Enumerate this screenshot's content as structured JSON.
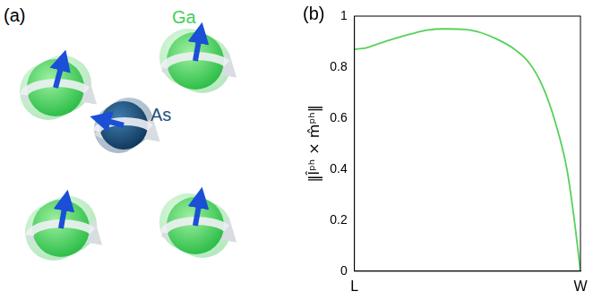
{
  "figure": {
    "panel_a": {
      "label": "(a)",
      "atom_labels": [
        "Ga",
        "As"
      ]
    },
    "panel_b": {
      "label": "(b)"
    }
  },
  "chart_data": {
    "type": "line",
    "y_label": "‖l̂ᵖʰ × m̂ᵖʰ‖",
    "x": [
      0,
      0.05,
      0.1,
      0.17,
      0.25,
      0.32,
      0.4,
      0.49,
      0.56,
      0.63,
      0.7,
      0.77,
      0.83,
      0.89,
      0.94,
      0.97,
      1
    ],
    "values": [
      0.87,
      0.875,
      0.89,
      0.91,
      0.93,
      0.945,
      0.95,
      0.948,
      0.935,
      0.91,
      0.875,
      0.82,
      0.73,
      0.58,
      0.4,
      0.22,
      0
    ],
    "color": "#55d15a",
    "xlim": [
      0,
      1
    ],
    "xticks": [
      {
        "value": 0,
        "label": "L"
      },
      {
        "value": 1,
        "label": "W"
      }
    ],
    "ylim": [
      0,
      1
    ],
    "yticks": [
      0,
      0.2,
      0.4,
      0.6,
      0.8,
      1
    ],
    "grid": false
  }
}
